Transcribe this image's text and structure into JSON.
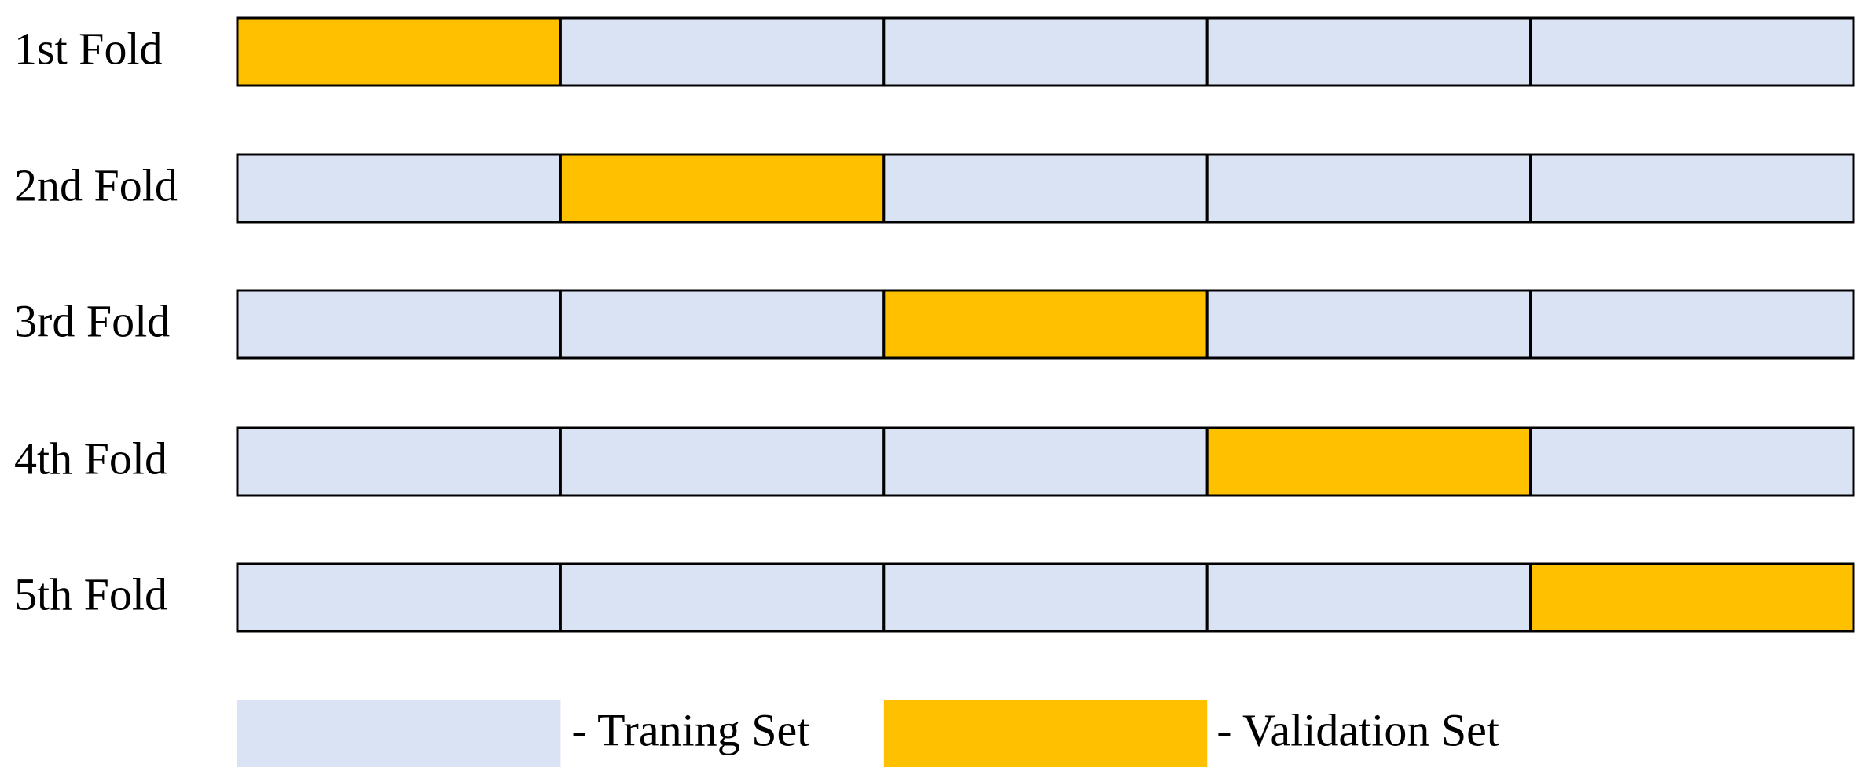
{
  "folds": [
    {
      "label": "1st Fold"
    },
    {
      "label": "2nd Fold"
    },
    {
      "label": "3rd Fold"
    },
    {
      "label": "4th Fold"
    },
    {
      "label": "5th Fold"
    }
  ],
  "legend": {
    "training": {
      "label": "- Traning Set",
      "color": "#dae3f3"
    },
    "validation": {
      "label": "- Validation Set",
      "color": "#ffc000"
    }
  }
}
